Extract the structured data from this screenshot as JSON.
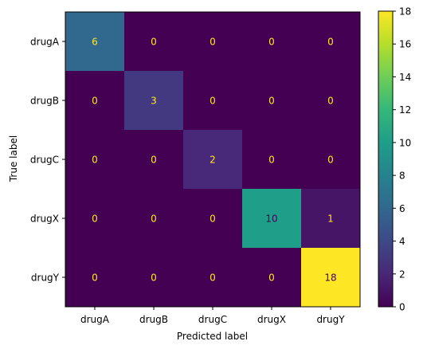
{
  "chart_data": {
    "type": "heatmap",
    "title": "",
    "xlabel": "Predicted label",
    "ylabel": "True label",
    "x_categories": [
      "drugA",
      "drugB",
      "drugC",
      "drugX",
      "drugY"
    ],
    "y_categories": [
      "drugA",
      "drugB",
      "drugC",
      "drugX",
      "drugY"
    ],
    "matrix": [
      [
        6,
        0,
        0,
        0,
        0
      ],
      [
        0,
        3,
        0,
        0,
        0
      ],
      [
        0,
        0,
        2,
        0,
        0
      ],
      [
        0,
        0,
        0,
        10,
        1
      ],
      [
        0,
        0,
        0,
        0,
        18
      ]
    ],
    "colormap": "viridis",
    "colorbar": {
      "min": 0,
      "max": 18,
      "ticks": [
        "0",
        "2",
        "4",
        "6",
        "8",
        "10",
        "12",
        "14",
        "16",
        "18"
      ]
    },
    "text_colors": {
      "on_dark": "#fde725",
      "on_light": "#440154"
    }
  }
}
